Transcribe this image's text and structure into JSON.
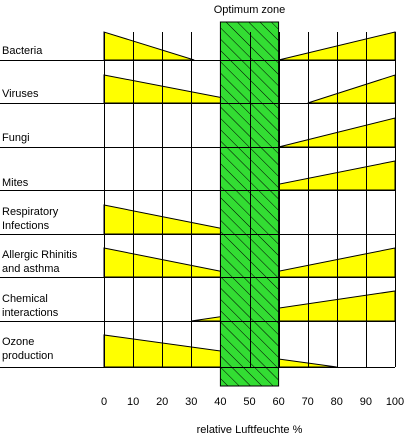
{
  "chart_data": {
    "type": "area",
    "title": "Optimum zone",
    "xlabel": "relative Luftfeuchte %",
    "ylabel": "",
    "xlim": [
      0,
      100
    ],
    "x_ticks": [
      0,
      10,
      20,
      30,
      40,
      50,
      60,
      70,
      80,
      90,
      100
    ],
    "grid": true,
    "optimum_zone": {
      "from": 40,
      "to": 60,
      "color": "#33dd33"
    },
    "fill_color": "#ffff00",
    "rows": [
      {
        "label_lines": [
          "Bacteria"
        ],
        "wedges": [
          {
            "from": 0,
            "to": 31,
            "direction": "decreasing"
          },
          {
            "from": 60,
            "to": 100,
            "direction": "increasing"
          }
        ]
      },
      {
        "label_lines": [
          "Viruses"
        ],
        "wedges": [
          {
            "from": 0,
            "to": 50,
            "direction": "decreasing"
          },
          {
            "from": 70,
            "to": 100,
            "direction": "increasing"
          }
        ]
      },
      {
        "label_lines": [
          "Fungi"
        ],
        "wedges": [
          {
            "from": 60,
            "to": 100,
            "direction": "increasing"
          }
        ]
      },
      {
        "label_lines": [
          "Mites"
        ],
        "wedges": [
          {
            "from": 50,
            "to": 100,
            "direction": "increasing"
          }
        ]
      },
      {
        "label_lines": [
          "Respiratory",
          "Infections"
        ],
        "wedges": [
          {
            "from": 0,
            "to": 50,
            "direction": "decreasing"
          }
        ]
      },
      {
        "label_lines": [
          "Allergic Rhinitis",
          "and asthma"
        ],
        "wedges": [
          {
            "from": 0,
            "to": 50,
            "direction": "decreasing"
          },
          {
            "from": 50,
            "to": 100,
            "direction": "increasing"
          }
        ]
      },
      {
        "label_lines": [
          "Chemical",
          "interactions"
        ],
        "wedges": [
          {
            "from": 30,
            "to": 100,
            "direction": "increasing"
          }
        ]
      },
      {
        "label_lines": [
          "Ozone",
          "production"
        ],
        "wedges": [
          {
            "from": 0,
            "to": 80,
            "direction": "decreasing"
          }
        ]
      }
    ]
  }
}
